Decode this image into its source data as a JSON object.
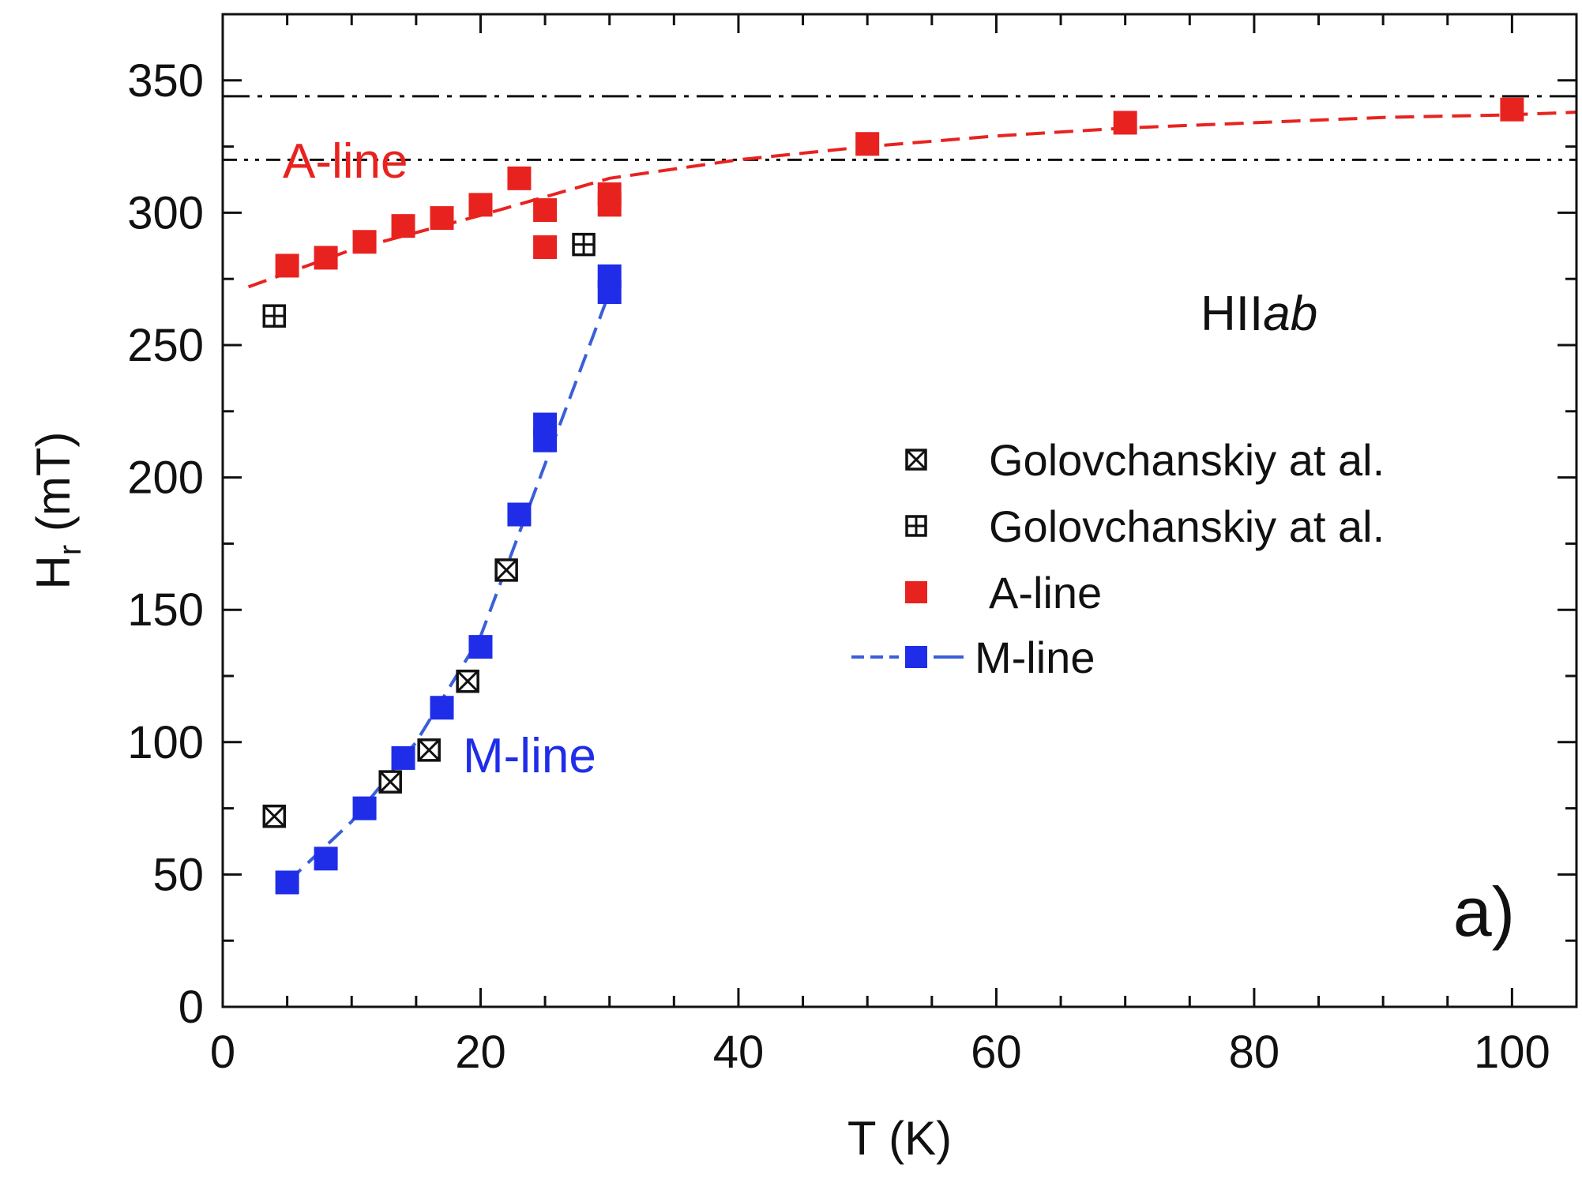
{
  "chart_data": {
    "type": "scatter",
    "xlabel": "T (K)",
    "ylabel": "H",
    "ylabel_sub": "r",
    "ylabel_unit": " (mT)",
    "xlim": [
      0,
      105
    ],
    "ylim": [
      0,
      375
    ],
    "xticks": [
      0,
      20,
      40,
      60,
      80,
      100
    ],
    "yticks": [
      0,
      50,
      100,
      150,
      200,
      250,
      300,
      350
    ],
    "grid": false,
    "legend_position": "right-center",
    "colors": {
      "A": "#e8231f",
      "M": "#1f2de8",
      "ref": "#111111",
      "fit_M": "#3a5fd9"
    },
    "series": [
      {
        "name": "Golovchanskiy at al.",
        "marker": "square-x",
        "x": [
          4,
          13,
          16,
          19,
          22
        ],
        "y": [
          72,
          85,
          97,
          123,
          165
        ]
      },
      {
        "name": "Golovchanskiy at al.",
        "marker": "square-plus",
        "x": [
          4,
          28
        ],
        "y": [
          261,
          288
        ]
      },
      {
        "name": "A-line",
        "marker": "square-filled",
        "x": [
          5,
          8,
          11,
          14,
          17,
          20,
          23,
          25,
          25,
          30,
          30,
          50,
          70,
          100
        ],
        "y": [
          280,
          283,
          289,
          295,
          298,
          303,
          313,
          301,
          287,
          307,
          303,
          326,
          334,
          339
        ]
      },
      {
        "name": "M-line",
        "marker": "square-filled",
        "x": [
          5,
          8,
          11,
          14,
          17,
          20,
          23,
          25,
          25,
          30,
          30
        ],
        "y": [
          47,
          56,
          75,
          94,
          113,
          136,
          186,
          214,
          220,
          270,
          276
        ]
      }
    ],
    "fits": [
      {
        "series": "A-line",
        "style": "dashed",
        "x": [
          2,
          10,
          20,
          30,
          40,
          50,
          60,
          70,
          80,
          90,
          100,
          105
        ],
        "y": [
          272,
          286,
          299,
          313,
          320,
          325,
          329,
          332,
          334,
          336,
          337,
          338
        ]
      },
      {
        "series": "M-line",
        "style": "dashed",
        "x": [
          5,
          10,
          15,
          20,
          25,
          30
        ],
        "y": [
          47,
          70,
          100,
          140,
          205,
          270
        ]
      }
    ],
    "reference_lines": [
      {
        "style": "dash-dot",
        "y": 344
      },
      {
        "style": "dash-dot-dot",
        "y": 320
      }
    ],
    "annotations": [
      {
        "text": "A-line",
        "x": 5,
        "y": 318,
        "color": "#e8231f"
      },
      {
        "text": "M-line",
        "x": 18.8,
        "y": 95,
        "color": "#1f2de8"
      },
      {
        "text": "HII",
        "italic_part": "ab",
        "x": 75.5,
        "y": 260,
        "color": "#111111"
      },
      {
        "text": "a)",
        "x": 95,
        "y": 30,
        "color": "#111111"
      }
    ]
  }
}
